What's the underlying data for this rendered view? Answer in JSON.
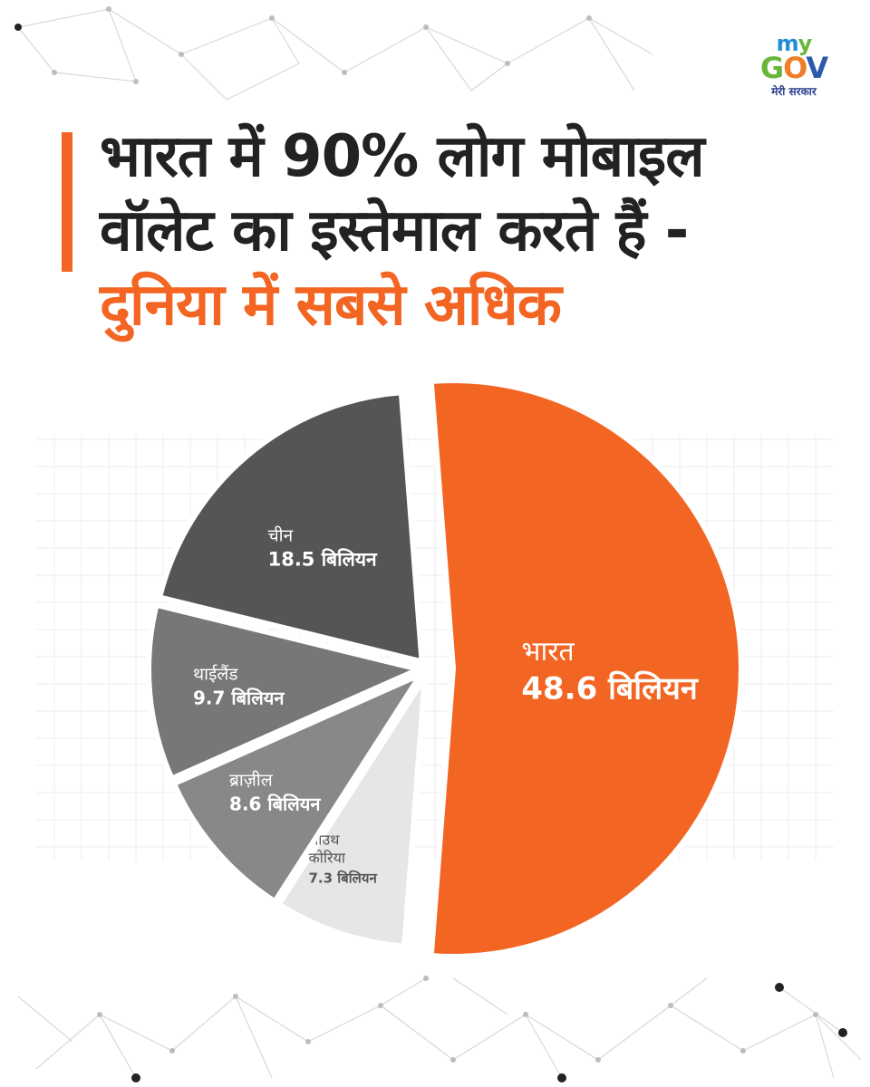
{
  "logo": {
    "my_m": "m",
    "my_y": "y",
    "gov_g": "G",
    "gov_o": "O",
    "gov_v": "V",
    "tagline": "मेरी सरकार"
  },
  "headline": {
    "line1": "भारत में 90% लोग मोबाइल",
    "line2": "वॉलेट का इस्तेमाल करते हैं -",
    "line3": "दुनिया में सबसे अधिक"
  },
  "colors": {
    "accent": "#f26522",
    "china": "#555555",
    "thailand": "#777777",
    "brazil": "#888888",
    "south_korea": "#e6e6e6",
    "grid": "#e8e8e8"
  },
  "chart_data": {
    "type": "pie",
    "unit": "बिलियन",
    "slices": [
      {
        "key": "india",
        "name": "भारत",
        "value_label": "48.6 बिलियन",
        "value": 48.6,
        "color": "#f26522",
        "text_color": "#ffffff"
      },
      {
        "key": "south_korea",
        "name": "साउथ कोरिया",
        "name_lines": [
          "साउथ",
          "कोरिया"
        ],
        "value_label": "7.3 बिलियन",
        "value": 7.3,
        "color": "#e6e6e6",
        "text_color": "#555555"
      },
      {
        "key": "brazil",
        "name": "ब्राज़ील",
        "value_label": "8.6 बिलियन",
        "value": 8.6,
        "color": "#888888",
        "text_color": "#ffffff"
      },
      {
        "key": "thailand",
        "name": "थाईलैंड",
        "value_label": "9.7 बिलियन",
        "value": 9.7,
        "color": "#777777",
        "text_color": "#ffffff"
      },
      {
        "key": "china",
        "name": "चीन",
        "value_label": "18.5 बिलियन",
        "value": 18.5,
        "color": "#555555",
        "text_color": "#ffffff"
      }
    ]
  }
}
